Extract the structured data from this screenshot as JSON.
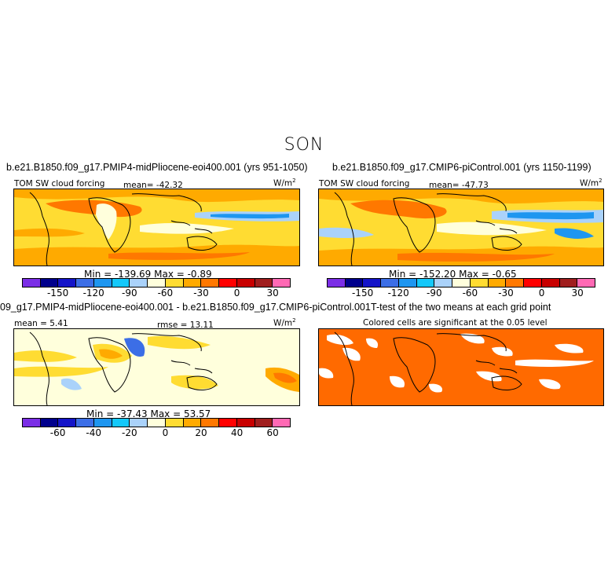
{
  "season": "SON",
  "palette": [
    "#7b2ee6",
    "#00008c",
    "#1414c8",
    "#3c6ee6",
    "#1e96f0",
    "#14c8fa",
    "#aad2fa",
    "#ffffdc",
    "#ffdc32",
    "#ffaa00",
    "#ff7800",
    "#ff0000",
    "#c80000",
    "#a01e1e",
    "#ff69b4"
  ],
  "sig_color": "#ff6a00",
  "chart_data": [
    {
      "type": "heatmap",
      "title": "b.e21.B1850.f09_g17.PMIP4-midPliocene-eoi400.001 (yrs 951-1050)",
      "left_label": "TOM SW cloud forcing",
      "center_label": "mean= -42.32",
      "units": "W/m",
      "units_sup": "2",
      "min_max": "Min = -139.69 Max = -0.89",
      "colorbar_ticks": [
        "-150",
        "-120",
        "-90",
        "-60",
        "-30",
        "0",
        "30"
      ]
    },
    {
      "type": "heatmap",
      "title": "b.e21.B1850.f09_g17.CMIP6-piControl.001 (yrs 1150-1199)",
      "left_label": "TOM SW cloud forcing",
      "center_label": "mean= -47.73",
      "units": "W/m",
      "units_sup": "2",
      "min_max": "Min = -152.20 Max = -0.65",
      "colorbar_ticks": [
        "-150",
        "-120",
        "-90",
        "-60",
        "-30",
        "0",
        "30"
      ]
    },
    {
      "type": "heatmap",
      "title": "09_g17.PMIP4-midPliocene-eoi400.001 - b.e21.B1850.f09_g17.CMIP6-piControl.001",
      "left_label": "mean = 5.41",
      "center_label": "rmse = 13.11",
      "units": "W/m",
      "units_sup": "2",
      "min_max": "Min = -37.43 Max = 53.57",
      "colorbar_ticks": [
        "-60",
        "-40",
        "-20",
        "0",
        "20",
        "40",
        "60"
      ]
    },
    {
      "type": "heatmap",
      "title": "T-test of the two means at each grid point",
      "center_label": "Colored cells are significant at the 0.05 level"
    }
  ]
}
